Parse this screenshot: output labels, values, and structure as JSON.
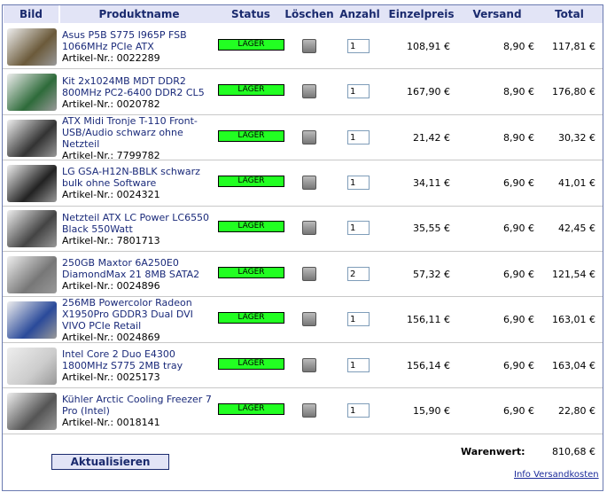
{
  "header": {
    "columns": [
      "Bild",
      "Produktname",
      "Status",
      "Löschen",
      "Anzahl",
      "Einzelpreis",
      "Versand",
      "Total"
    ]
  },
  "items": [
    {
      "name": "Asus P5B S775 I965P FSB 1066MHz PCIe ATX",
      "article": "Artikel-Nr.: 0022289",
      "status": "LAGER",
      "quantity": "1",
      "price": "108,91 €",
      "shipping": "8,90 €",
      "total": "117,81 €"
    },
    {
      "name": "Kit 2x1024MB MDT DDR2 800MHz PC2-6400 DDR2 CL5",
      "article": "Artikel-Nr.: 0020782",
      "status": "LAGER",
      "quantity": "1",
      "price": "167,90 €",
      "shipping": "8,90 €",
      "total": "176,80 €"
    },
    {
      "name": "ATX Midi Tronje T-110 Front-USB/Audio schwarz ohne Netzteil",
      "article": "Artikel-Nr.: 7799782",
      "status": "LAGER",
      "quantity": "1",
      "price": "21,42 €",
      "shipping": "8,90 €",
      "total": "30,32 €"
    },
    {
      "name": "LG GSA-H12N-BBLK schwarz bulk ohne Software",
      "article": "Artikel-Nr.: 0024321",
      "status": "LAGER",
      "quantity": "1",
      "price": "34,11 €",
      "shipping": "6,90 €",
      "total": "41,01 €"
    },
    {
      "name": "Netzteil ATX LC Power LC6550 Black 550Watt",
      "article": "Artikel-Nr.: 7801713",
      "status": "LAGER",
      "quantity": "1",
      "price": "35,55 €",
      "shipping": "6,90 €",
      "total": "42,45 €"
    },
    {
      "name": "250GB Maxtor 6A250E0 DiamondMax 21 8MB SATA2",
      "article": "Artikel-Nr.: 0024896",
      "status": "LAGER",
      "quantity": "2",
      "price": "57,32 €",
      "shipping": "6,90 €",
      "total": "121,54 €"
    },
    {
      "name": "256MB Powercolor Radeon X1950Pro GDDR3 Dual DVI VIVO PCIe Retail",
      "article": "Artikel-Nr.: 0024869",
      "status": "LAGER",
      "quantity": "1",
      "price": "156,11 €",
      "shipping": "6,90 €",
      "total": "163,01 €"
    },
    {
      "name": "Intel Core 2 Duo E4300 1800MHz S775 2MB tray",
      "article": "Artikel-Nr.: 0025173",
      "status": "LAGER",
      "quantity": "1",
      "price": "156,14 €",
      "shipping": "6,90 €",
      "total": "163,04 €"
    },
    {
      "name": "Kühler Arctic Cooling Freezer 7 Pro (Intel)",
      "article": "Artikel-Nr.: 0018141",
      "status": "LAGER",
      "quantity": "1",
      "price": "15,90 €",
      "shipping": "6,90 €",
      "total": "22,80 €"
    }
  ],
  "footer": {
    "subtotal_label": "Warenwert:",
    "subtotal": "810,68 €",
    "update_button": "Aktualisieren",
    "shipping_info_link": "Info Versandkosten"
  }
}
